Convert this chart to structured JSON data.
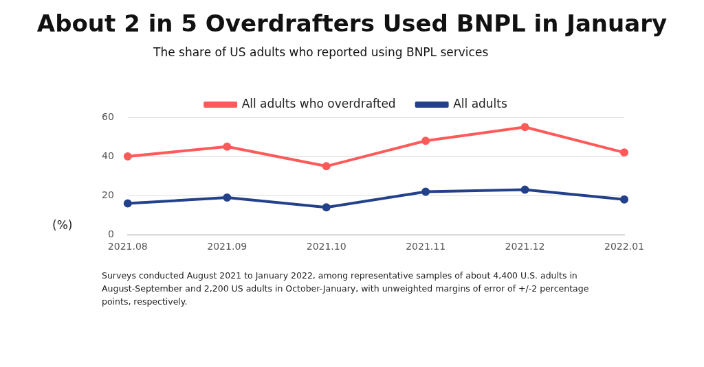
{
  "chart_data": {
    "type": "line",
    "title": "About 2 in 5 Overdrafters Used BNPL in January",
    "subtitle": "The share of US adults who reported using BNPL services",
    "ylabel": "(%)",
    "categories": [
      "2021.08",
      "2021.09",
      "2021.10",
      "2021.11",
      "2021.12",
      "2022.01"
    ],
    "series": [
      {
        "name": "All adults who overdrafted",
        "color": "#ff5a5a",
        "values": [
          40,
          45,
          35,
          48,
          55,
          42
        ]
      },
      {
        "name": "All adults",
        "color": "#23418a",
        "values": [
          16,
          19,
          14,
          22,
          23,
          18
        ]
      }
    ],
    "ylim": [
      0,
      60
    ],
    "yticks": [
      0,
      20,
      40,
      60
    ],
    "grid": "y",
    "legend": "top",
    "marker": "circle",
    "line_style": "solid",
    "annotations": [
      "Surveys conducted August 2021 to January 2022, among representative samples of about 4,400 U.S. adults in August-September and 2,200 US adults in October-January, with unweighted margins of error of +/-2 percentage points, respectively."
    ]
  }
}
